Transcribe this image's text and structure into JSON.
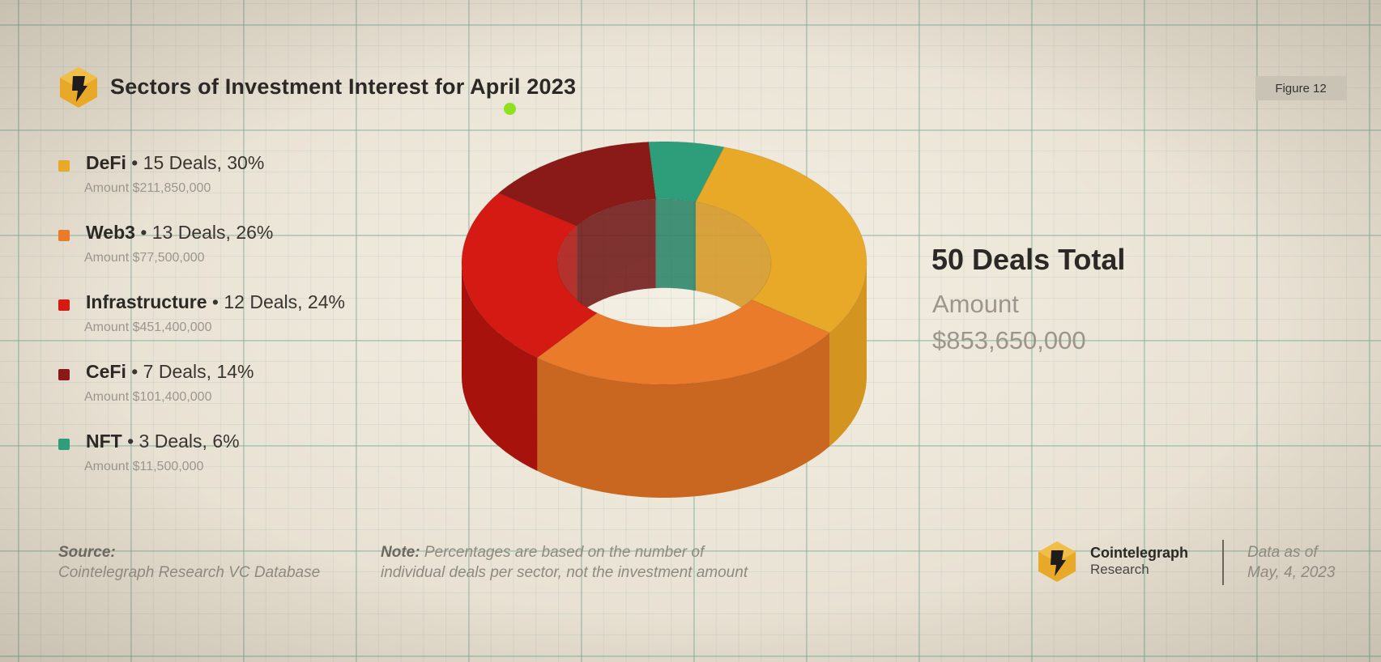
{
  "header": {
    "title": "Sectors of Investment Interest for April 2023",
    "figure_label": "Figure 12"
  },
  "legend": [
    {
      "name": "DeFi",
      "detail": " • 15 Deals, 30%",
      "amount": "Amount $211,850,000",
      "color": "#e8a828"
    },
    {
      "name": "Web3",
      "detail": " • 13 Deals, 26%",
      "amount": "Amount $77,500,000",
      "color": "#e97b2a"
    },
    {
      "name": "Infrastructure",
      "detail": " • 12 Deals, 24%",
      "amount": "Amount $451,400,000",
      "color": "#d41a12"
    },
    {
      "name": "CeFi",
      "detail": " • 7 Deals, 14%",
      "amount": "Amount $101,400,000",
      "color": "#8a1a17"
    },
    {
      "name": "NFT",
      "detail": " • 3 Deals, 6%",
      "amount": "Amount $11,500,000",
      "color": "#2e9e7a"
    }
  ],
  "summary": {
    "total": "50 Deals Total",
    "amount_label": "Amount",
    "amount_value": "$853,650,000"
  },
  "footer": {
    "source_label": "Source:",
    "source_text": "Cointelegraph Research VC Database",
    "note_label": "Note:",
    "note_text_1": " Percentages are based on the number of",
    "note_text_2": "individual deals per sector, not the investment amount",
    "brand_name": "Cointelegraph",
    "brand_sub": "Research",
    "asof_line1": "Data as of",
    "asof_line2": "May, 4, 2023"
  },
  "chart_data": {
    "type": "pie",
    "style": "3d-donut",
    "categories": [
      "DeFi",
      "Web3",
      "Infrastructure",
      "CeFi",
      "NFT"
    ],
    "values": [
      30,
      26,
      24,
      14,
      6
    ],
    "deals": [
      15,
      13,
      12,
      7,
      3
    ],
    "colors": [
      "#e8a828",
      "#e97b2a",
      "#d41a12",
      "#8a1a17",
      "#2e9e7a"
    ],
    "side_colors": [
      "#d49420",
      "#c9661f",
      "#a8120d",
      "#6b1210",
      "#238063"
    ],
    "legend": "left"
  }
}
